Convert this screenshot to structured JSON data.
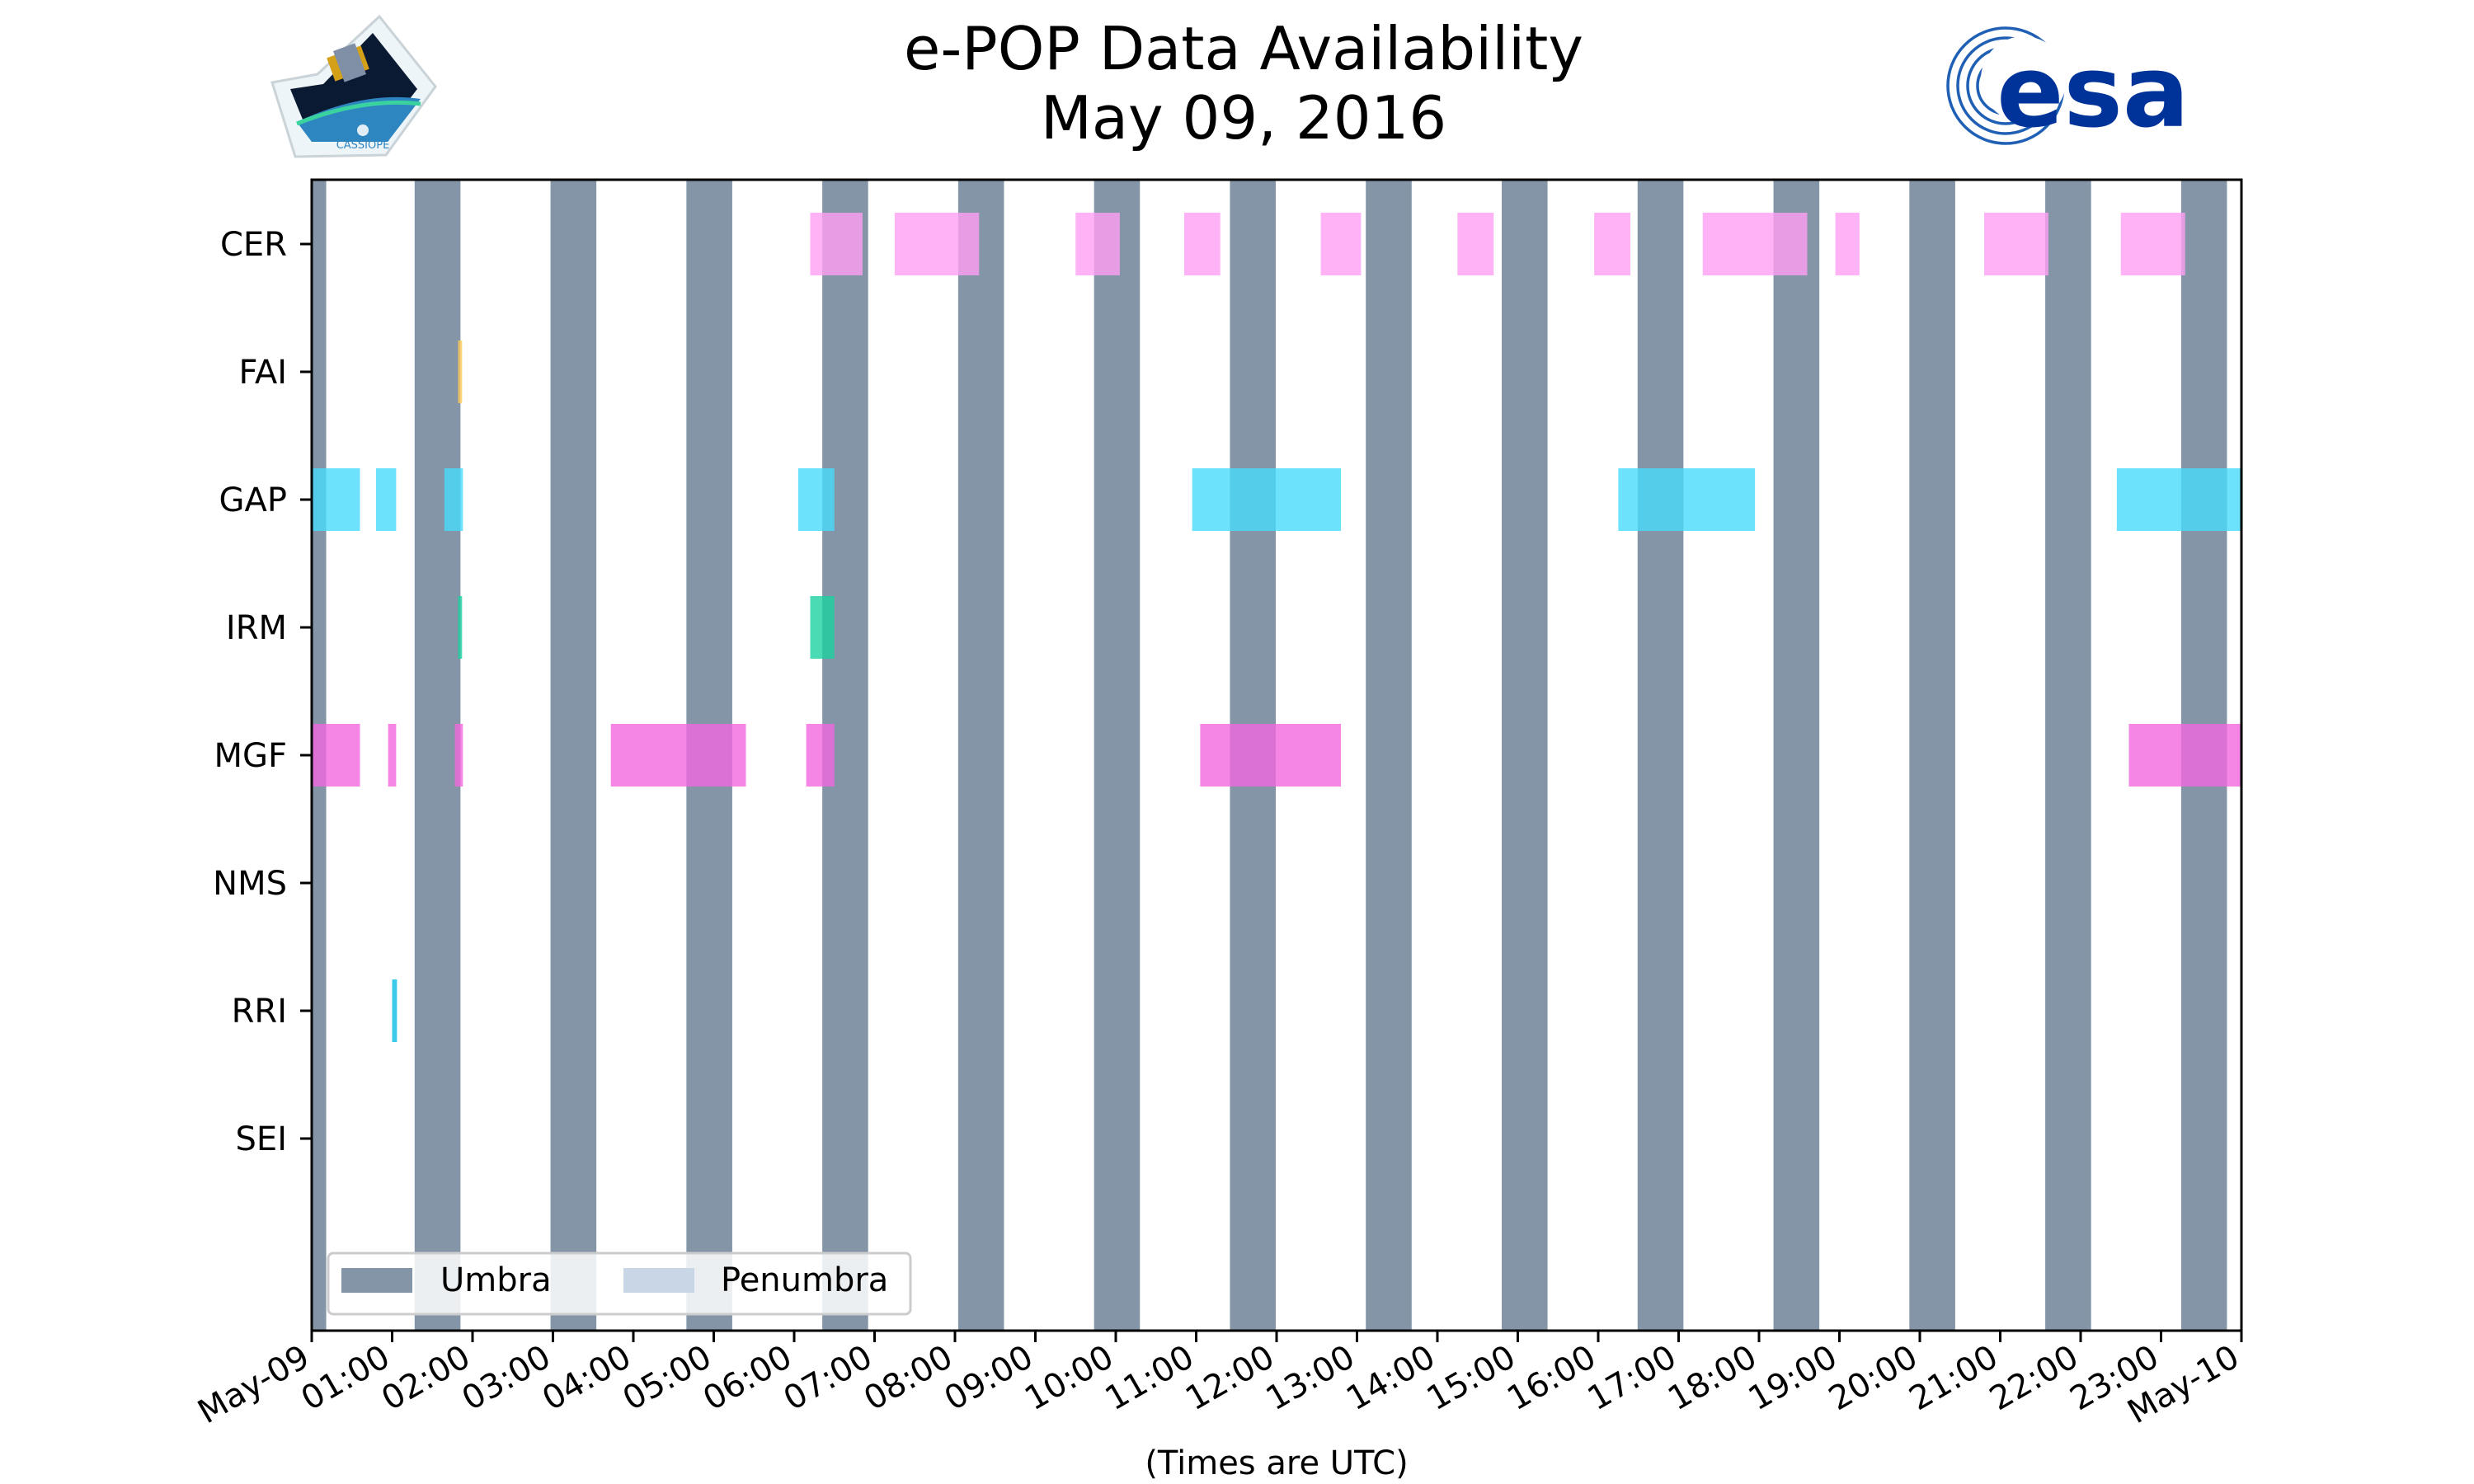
{
  "mission_logo": {
    "caption": "CASSIOPE"
  },
  "agency_logo": {
    "text": "esa"
  },
  "chart_data": {
    "type": "timeline",
    "title": "e-POP Data Availability",
    "subtitle": "May 09, 2016",
    "xlabel": "(Times are UTC)",
    "x_range_hours": [
      0,
      24
    ],
    "x_tick_labels": [
      "May-09",
      "01:00",
      "02:00",
      "03:00",
      "04:00",
      "05:00",
      "06:00",
      "07:00",
      "08:00",
      "09:00",
      "10:00",
      "11:00",
      "12:00",
      "13:00",
      "14:00",
      "15:00",
      "16:00",
      "17:00",
      "18:00",
      "19:00",
      "20:00",
      "21:00",
      "22:00",
      "23:00",
      "May-10"
    ],
    "instruments": [
      "CER",
      "FAI",
      "GAP",
      "IRM",
      "MGF",
      "NMS",
      "RRI",
      "SEI"
    ],
    "legend": {
      "position": "lower-left",
      "entries": [
        {
          "label": "Umbra",
          "color": "#8395a7"
        },
        {
          "label": "Penumbra",
          "color": "#c8d6e5"
        }
      ]
    },
    "umbra_intervals": [
      [
        0.0,
        0.18
      ],
      [
        1.28,
        1.85
      ],
      [
        2.97,
        3.54
      ],
      [
        4.66,
        5.23
      ],
      [
        6.35,
        6.92
      ],
      [
        8.04,
        8.61
      ],
      [
        9.73,
        10.3
      ],
      [
        11.42,
        11.99
      ],
      [
        13.11,
        13.68
      ],
      [
        14.8,
        15.37
      ],
      [
        16.49,
        17.06
      ],
      [
        18.18,
        18.75
      ],
      [
        19.87,
        20.44
      ],
      [
        21.56,
        22.13
      ],
      [
        23.25,
        23.82
      ]
    ],
    "series": [
      {
        "name": "CER",
        "color": "#ff9ff3",
        "intervals": [
          [
            6.2,
            6.85
          ],
          [
            7.25,
            8.3
          ],
          [
            9.5,
            10.05
          ],
          [
            10.85,
            11.3
          ],
          [
            12.55,
            13.05
          ],
          [
            14.25,
            14.7
          ],
          [
            15.95,
            16.4
          ],
          [
            17.3,
            18.6
          ],
          [
            18.95,
            19.25
          ],
          [
            20.8,
            21.6
          ],
          [
            22.5,
            23.3
          ]
        ]
      },
      {
        "name": "FAI",
        "color": "#feca57",
        "intervals": [
          [
            1.82,
            1.87
          ]
        ]
      },
      {
        "name": "GAP",
        "color": "#48dbfb",
        "intervals": [
          [
            0.0,
            0.6
          ],
          [
            0.8,
            1.05
          ],
          [
            1.65,
            1.88
          ],
          [
            6.05,
            6.5
          ],
          [
            10.95,
            12.8
          ],
          [
            16.25,
            17.95
          ],
          [
            22.45,
            24.0
          ]
        ]
      },
      {
        "name": "IRM",
        "color": "#1dd1a1",
        "intervals": [
          [
            1.82,
            1.87
          ],
          [
            6.2,
            6.5
          ]
        ]
      },
      {
        "name": "MGF",
        "color": "#f368e0",
        "intervals": [
          [
            0.0,
            0.6
          ],
          [
            0.95,
            1.05
          ],
          [
            1.78,
            1.88
          ],
          [
            3.72,
            5.4
          ],
          [
            6.15,
            6.5
          ],
          [
            11.05,
            12.8
          ],
          [
            22.6,
            24.0
          ]
        ]
      },
      {
        "name": "NMS",
        "color": "#f368e0",
        "intervals": []
      },
      {
        "name": "RRI",
        "color": "#0abde3",
        "intervals": [
          [
            1.0,
            1.06
          ]
        ]
      },
      {
        "name": "SEI",
        "color": "#54a0ff",
        "intervals": []
      }
    ]
  }
}
